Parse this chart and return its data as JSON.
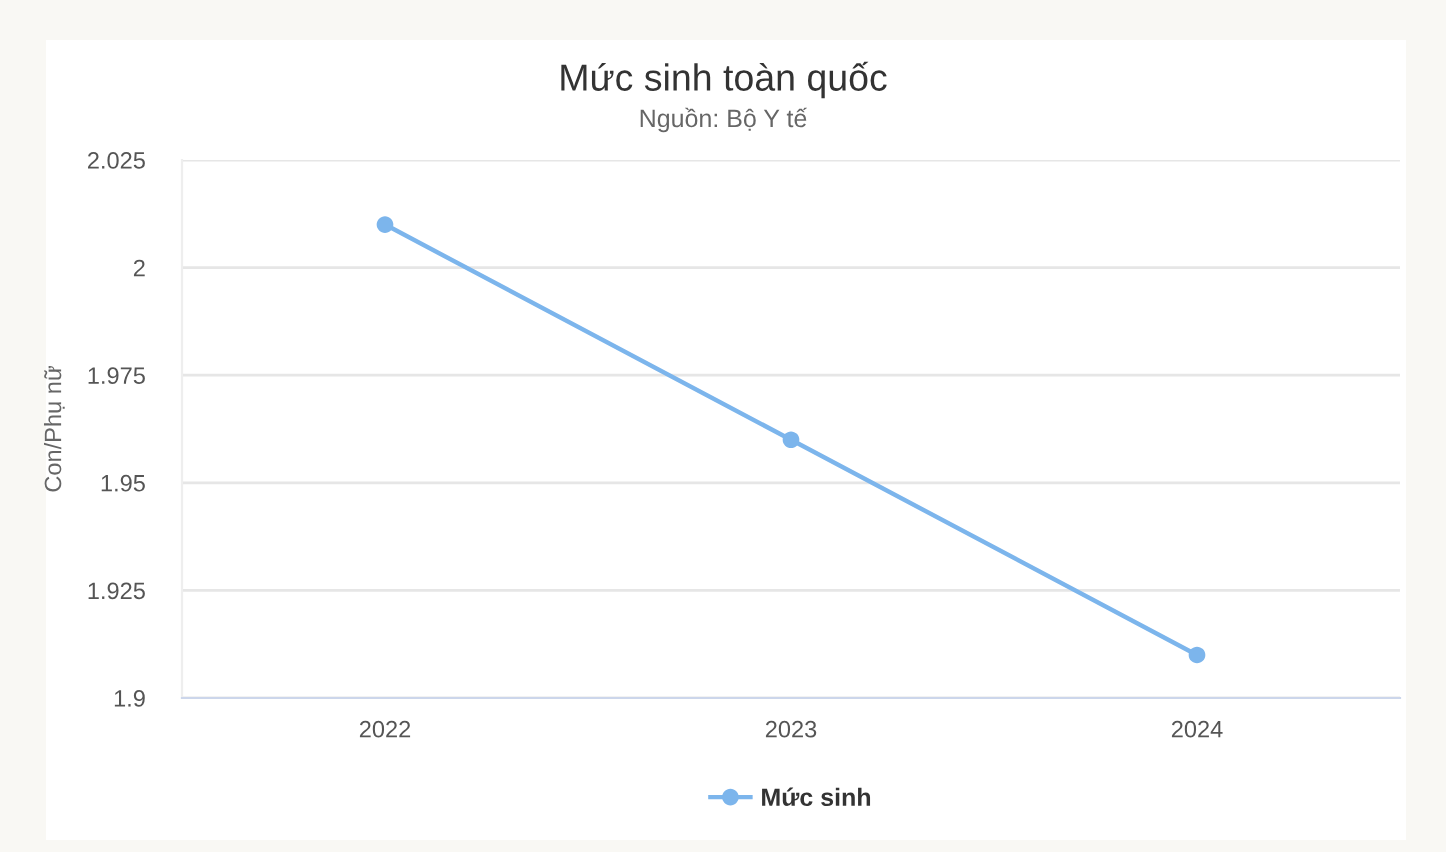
{
  "chart_data": {
    "type": "line",
    "title": "Mức sinh toàn quốc",
    "subtitle": "Nguồn: Bộ Y tế",
    "ylabel": "Con/Phụ nữ",
    "categories": [
      "2022",
      "2023",
      "2024"
    ],
    "series": [
      {
        "name": "Mức sinh",
        "color": "#7cb5ec",
        "values": [
          2.01,
          1.96,
          1.91
        ]
      }
    ],
    "ylim": [
      1.9,
      2.025
    ],
    "yticks": [
      1.9,
      1.925,
      1.95,
      1.975,
      2,
      2.025
    ],
    "grid": "y",
    "legend": "bottom",
    "marker": "circle",
    "line_style": "solid"
  }
}
